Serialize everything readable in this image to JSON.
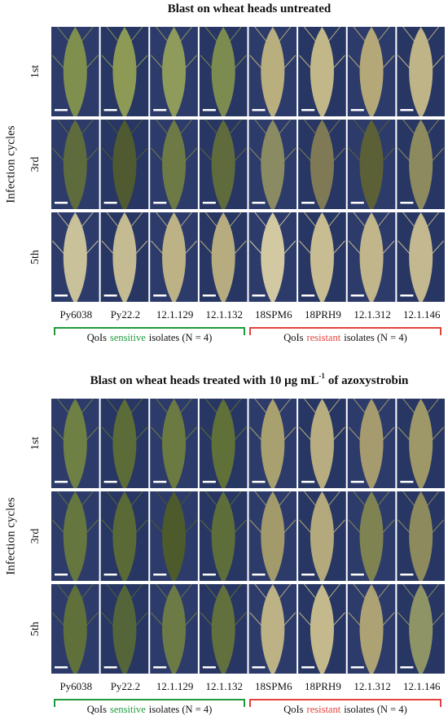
{
  "panels": [
    {
      "title": "Blast on wheat heads untreated",
      "y_label": "Infection cycles",
      "rows": [
        "1st",
        "3rd",
        "5th"
      ],
      "isolates": [
        "Py6038",
        "Py22.2",
        "12.1.129",
        "12.1.132",
        "18SPM6",
        "18PRH9",
        "12.1.312",
        "12.1.146"
      ],
      "groups": [
        {
          "prefix": "QoIs",
          "keyword": "sensitive",
          "suffix": "isolates (N = 4)"
        },
        {
          "prefix": "QoIs",
          "keyword": "resistant",
          "suffix": "isolates (N = 4)"
        }
      ]
    },
    {
      "title": "Blast on wheat heads treated with 10 μg mL",
      "title_sup": "-1",
      "title_end": "of azoxystrobin",
      "y_label": "Infection cycles",
      "rows": [
        "1st",
        "3rd",
        "5th"
      ],
      "isolates": [
        "Py6038",
        "Py22.2",
        "12.1.129",
        "12.1.132",
        "18SPM6",
        "18PRH9",
        "12.1.312",
        "12.1.146"
      ],
      "groups": [
        {
          "prefix": "QoIs",
          "keyword": "sensitive",
          "suffix": "isolates (N = 4)"
        },
        {
          "prefix": "QoIs",
          "keyword": "resistant",
          "suffix": "isolates (N = 4)"
        }
      ]
    }
  ]
}
